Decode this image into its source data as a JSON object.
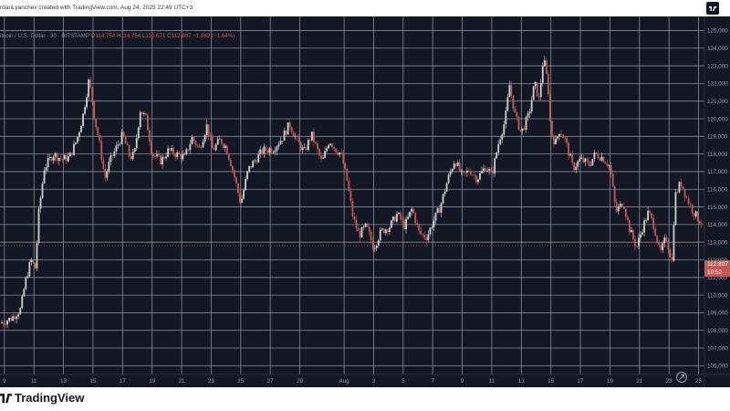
{
  "header": {
    "credit": "rdanLyanchev created with TradingView.com, Aug 24, 2025 22:49 UTC+3"
  },
  "legend": {
    "symbol": "itcoin / U.S. Dollar · 30 · BITSTAMP",
    "o_label": "O",
    "o_value": "114.754",
    "h_label": "H",
    "h_value": "114.754",
    "l_label": "L",
    "l_value": "110.671",
    "c_label": "C",
    "c_value": "112.807",
    "change": "−1.882 (−1.64%)"
  },
  "price_tag": {
    "price": "112.807",
    "countdown": "10:52"
  },
  "footer": {
    "brand": "TradingView"
  },
  "colors": {
    "background": "#141824",
    "grid": "#9aa0ab",
    "up": "#c9d4cf",
    "down": "#c25a55",
    "axis_text": "#9aa0ab"
  },
  "icons": [
    "tradingview-logo-icon",
    "replay-icon"
  ],
  "chart_data": {
    "type": "candlestick",
    "title": "",
    "xlabel": "",
    "ylabel": "",
    "ylim": [
      105500,
      125800
    ],
    "grid": true,
    "y_ticks": [
      "125,000",
      "124,000",
      "123,000",
      "122,000",
      "121,000",
      "120,000",
      "119,000",
      "118,000",
      "117,000",
      "116,000",
      "115,000",
      "114,000",
      "113,000",
      "112,000",
      "111,000",
      "110,000",
      "109,000",
      "108,000",
      "107,000",
      "106,000"
    ],
    "x_ticks": [
      "9",
      "11",
      "13",
      "15",
      "17",
      "19",
      "21",
      "23",
      "25",
      "27",
      "29",
      "Aug",
      "3",
      "5",
      "7",
      "9",
      "11",
      "13",
      "15",
      "17",
      "19",
      "21",
      "23",
      "25"
    ],
    "x_tick_days": [
      0,
      2,
      4,
      6,
      8,
      10,
      12,
      14,
      16,
      18,
      20,
      23,
      25,
      27,
      29,
      31,
      33,
      35,
      37,
      39,
      41,
      43,
      45,
      47
    ],
    "x_range_days": [
      -0.3,
      47.4
    ],
    "series": [
      {
        "name": "BTCUSD",
        "anchors": [
          [
            -0.3,
            108400
          ],
          [
            0.5,
            108700
          ],
          [
            1.1,
            109200
          ],
          [
            1.4,
            110700
          ],
          [
            1.8,
            112000
          ],
          [
            2.1,
            111500
          ],
          [
            2.3,
            114500
          ],
          [
            2.7,
            117200
          ],
          [
            3.3,
            118000
          ],
          [
            3.9,
            117700
          ],
          [
            4.4,
            117800
          ],
          [
            4.9,
            118800
          ],
          [
            5.3,
            120100
          ],
          [
            5.7,
            122100
          ],
          [
            5.9,
            121400
          ],
          [
            6.1,
            120000
          ],
          [
            6.4,
            118800
          ],
          [
            6.8,
            116600
          ],
          [
            7.1,
            117500
          ],
          [
            7.6,
            118400
          ],
          [
            8.0,
            119100
          ],
          [
            8.5,
            117800
          ],
          [
            8.8,
            118000
          ],
          [
            9.2,
            120500
          ],
          [
            9.6,
            120000
          ],
          [
            10.0,
            118000
          ],
          [
            10.6,
            117600
          ],
          [
            11.1,
            118200
          ],
          [
            11.6,
            118000
          ],
          [
            12.2,
            117800
          ],
          [
            12.7,
            118900
          ],
          [
            13.2,
            118300
          ],
          [
            13.7,
            119600
          ],
          [
            14.1,
            118200
          ],
          [
            14.6,
            118800
          ],
          [
            15.0,
            118400
          ],
          [
            15.4,
            117300
          ],
          [
            16.0,
            115200
          ],
          [
            16.5,
            117100
          ],
          [
            17.0,
            117700
          ],
          [
            17.5,
            118200
          ],
          [
            18.2,
            118300
          ],
          [
            18.8,
            118900
          ],
          [
            19.3,
            119700
          ],
          [
            19.8,
            118800
          ],
          [
            20.3,
            118100
          ],
          [
            20.8,
            119100
          ],
          [
            21.5,
            117500
          ],
          [
            22.0,
            118800
          ],
          [
            22.4,
            118300
          ],
          [
            22.8,
            118000
          ],
          [
            23.2,
            116500
          ],
          [
            23.6,
            114400
          ],
          [
            24.0,
            113400
          ],
          [
            24.5,
            113900
          ],
          [
            25.0,
            112700
          ],
          [
            25.5,
            113600
          ],
          [
            26.1,
            113900
          ],
          [
            26.6,
            114600
          ],
          [
            27.1,
            113900
          ],
          [
            27.6,
            114900
          ],
          [
            28.1,
            113500
          ],
          [
            28.6,
            113300
          ],
          [
            29.0,
            114100
          ],
          [
            29.5,
            115000
          ],
          [
            30.0,
            116500
          ],
          [
            30.5,
            117700
          ],
          [
            31.0,
            116700
          ],
          [
            31.5,
            117100
          ],
          [
            32.0,
            116600
          ],
          [
            32.6,
            117300
          ],
          [
            33.0,
            116800
          ],
          [
            33.5,
            118800
          ],
          [
            33.9,
            119900
          ],
          [
            34.2,
            121900
          ],
          [
            34.6,
            120100
          ],
          [
            35.0,
            119200
          ],
          [
            35.5,
            120200
          ],
          [
            35.9,
            122000
          ],
          [
            36.2,
            121100
          ],
          [
            36.5,
            123500
          ],
          [
            36.8,
            121900
          ],
          [
            37.0,
            119200
          ],
          [
            37.3,
            118600
          ],
          [
            37.6,
            119400
          ],
          [
            38.0,
            118700
          ],
          [
            38.5,
            117200
          ],
          [
            39.0,
            117700
          ],
          [
            39.6,
            117400
          ],
          [
            40.0,
            118000
          ],
          [
            40.5,
            117800
          ],
          [
            41.0,
            117300
          ],
          [
            41.4,
            114700
          ],
          [
            41.9,
            115300
          ],
          [
            42.3,
            113800
          ],
          [
            42.8,
            112700
          ],
          [
            43.2,
            113800
          ],
          [
            43.6,
            114700
          ],
          [
            44.0,
            113900
          ],
          [
            44.4,
            112300
          ],
          [
            44.8,
            113300
          ],
          [
            45.2,
            111900
          ],
          [
            45.4,
            115600
          ],
          [
            45.8,
            116400
          ],
          [
            46.2,
            115500
          ],
          [
            46.6,
            114800
          ],
          [
            47.0,
            114300
          ],
          [
            47.3,
            114100
          ]
        ]
      }
    ]
  }
}
